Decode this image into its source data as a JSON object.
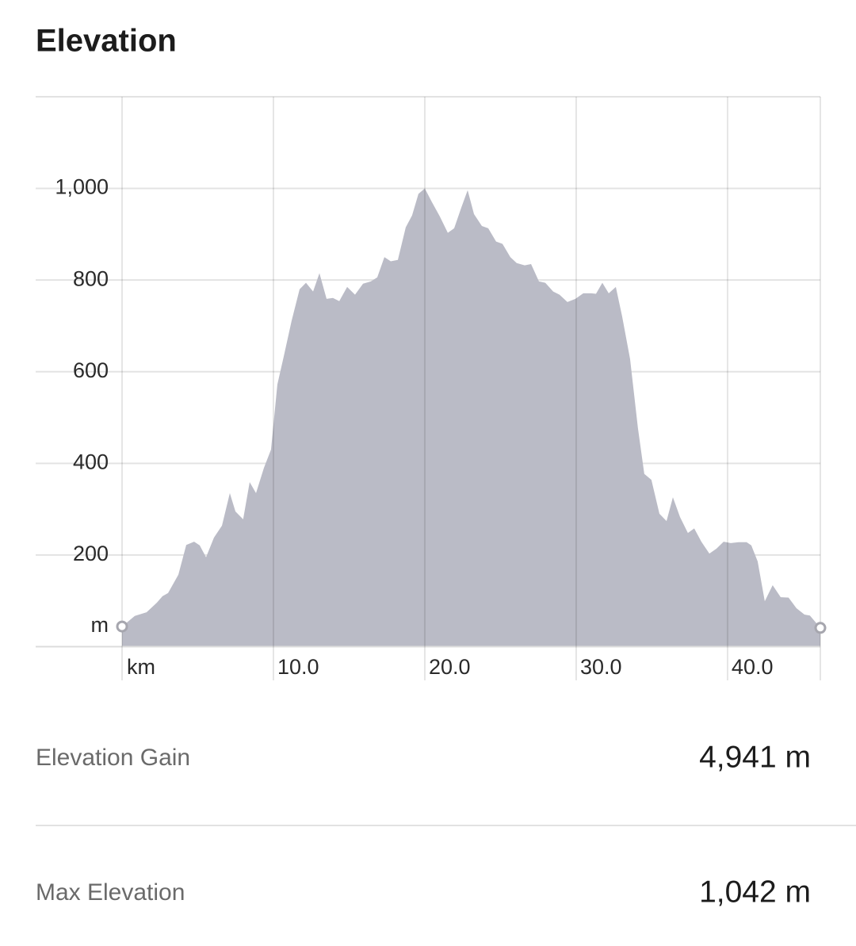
{
  "chart_data": {
    "type": "area",
    "title": "Elevation",
    "x_label": "km",
    "y_label": "m",
    "x": [
      0,
      0.84,
      1.62,
      2.3,
      2.67,
      3.04,
      3.72,
      4.24,
      4.76,
      5.13,
      5.55,
      6.07,
      6.6,
      7.12,
      7.49,
      8.0,
      8.43,
      8.85,
      9.37,
      9.84,
      10.26,
      10.68,
      11.2,
      11.73,
      12.15,
      12.62,
      13.04,
      13.51,
      13.93,
      14.35,
      14.87,
      15.39,
      15.92,
      16.44,
      16.86,
      17.33,
      17.75,
      18.22,
      18.74,
      19.16,
      19.58,
      20.0,
      20.47,
      20.99,
      21.52,
      21.94,
      22.41,
      22.83,
      23.25,
      23.77,
      24.19,
      24.71,
      25.13,
      25.65,
      26.07,
      26.6,
      27.02,
      27.54,
      27.96,
      28.48,
      28.9,
      29.42,
      29.95,
      30.47,
      30.99,
      31.31,
      31.73,
      32.15,
      32.62,
      33.04,
      33.56,
      34.08,
      34.5,
      34.97,
      35.5,
      35.97,
      36.39,
      36.86,
      37.38,
      37.8,
      38.27,
      38.8,
      39.27,
      39.74,
      40.21,
      40.73,
      41.26,
      41.57,
      41.99,
      42.46,
      42.98,
      43.51,
      44.03,
      44.55,
      45.08,
      45.44,
      46.13
    ],
    "values": [
      44,
      67,
      75,
      96,
      110,
      117,
      157,
      222,
      229,
      221,
      195,
      238,
      264,
      335,
      295,
      278,
      359,
      335,
      390,
      430,
      572,
      633,
      711,
      780,
      794,
      775,
      815,
      759,
      761,
      754,
      785,
      768,
      792,
      797,
      806,
      850,
      841,
      844,
      915,
      941,
      988,
      1000,
      970,
      939,
      903,
      913,
      958,
      996,
      944,
      918,
      913,
      884,
      879,
      850,
      837,
      832,
      835,
      797,
      794,
      775,
      768,
      752,
      759,
      771,
      771,
      770,
      794,
      771,
      785,
      720,
      628,
      477,
      377,
      364,
      290,
      274,
      326,
      283,
      248,
      258,
      229,
      203,
      214,
      229,
      226,
      228,
      228,
      221,
      186,
      99,
      134,
      108,
      107,
      84,
      70,
      68,
      41
    ],
    "color": "#babbc6",
    "xlim": [
      0,
      46.13
    ],
    "ylim": [
      0,
      1200
    ],
    "xticks": [
      {
        "value": 10,
        "label": "10.0"
      },
      {
        "value": 20,
        "label": "20.0"
      },
      {
        "value": 30,
        "label": "30.0"
      },
      {
        "value": 40,
        "label": "40.0"
      }
    ],
    "yticks": [
      200,
      400,
      600,
      800,
      {
        "value": 1000,
        "label": "1,000"
      }
    ],
    "grid": true
  },
  "stats": [
    {
      "label": "Elevation Gain",
      "value": "4,941 m"
    },
    {
      "label": "Max Elevation",
      "value": "1,042 m"
    }
  ]
}
